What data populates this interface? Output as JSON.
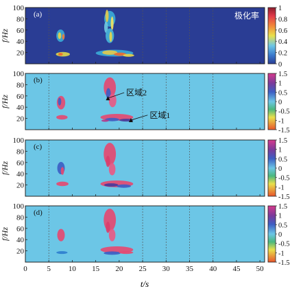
{
  "figure": {
    "xlabel": "t/s",
    "x_ticks": [
      0,
      5,
      10,
      15,
      20,
      25,
      30,
      35,
      40,
      45,
      50
    ],
    "xlim": [
      0,
      51
    ],
    "dashed_vlines": [
      5,
      25,
      30,
      35,
      40
    ]
  },
  "chart_data": [
    {
      "type": "heatmap",
      "panel_label": "(a)",
      "annotation": "极化率",
      "ylabel": "f/Hz",
      "ylim": [
        0,
        100
      ],
      "y_ticks": [
        20,
        40,
        60,
        80,
        100
      ],
      "background": "#2a3d94",
      "colorbar": {
        "ticks": [
          "1",
          "0.8",
          "0.6",
          "0.4",
          "0.2",
          "0"
        ],
        "range": [
          0,
          1
        ]
      },
      "blobs": [
        {
          "t": 7.5,
          "f": 50,
          "dt": 0.9,
          "df": 11,
          "color": "#3ba9d6"
        },
        {
          "t": 7.3,
          "f": 50,
          "dt": 0.35,
          "df": 6,
          "color": "#e6d54a"
        },
        {
          "t": 8.1,
          "f": 48,
          "dt": 0.25,
          "df": 5,
          "color": "#f07c3a"
        },
        {
          "t": 8.0,
          "f": 17,
          "dt": 1.5,
          "df": 4,
          "color": "#d9d44c"
        },
        {
          "t": 7.5,
          "f": 17,
          "dt": 0.5,
          "df": 2.5,
          "color": "#ef6a2f"
        },
        {
          "t": 18,
          "f": 80,
          "dt": 1.2,
          "df": 14,
          "color": "#3ba9d6"
        },
        {
          "t": 17.4,
          "f": 85,
          "dt": 0.35,
          "df": 11,
          "color": "#e3c94d"
        },
        {
          "t": 18.5,
          "f": 72,
          "dt": 0.3,
          "df": 12,
          "color": "#f3e25e"
        },
        {
          "t": 17.2,
          "f": 65,
          "dt": 0.4,
          "df": 10,
          "color": "#6fc7e0"
        },
        {
          "t": 18,
          "f": 50,
          "dt": 0.9,
          "df": 13,
          "color": "#47b4d8"
        },
        {
          "t": 18.2,
          "f": 48,
          "dt": 0.3,
          "df": 9,
          "color": "#e6d54a"
        },
        {
          "t": 19,
          "f": 19,
          "dt": 4,
          "df": 6,
          "color": "#3ba9d6"
        },
        {
          "t": 18,
          "f": 20,
          "dt": 1.6,
          "df": 4,
          "color": "#e3c94d"
        },
        {
          "t": 20.2,
          "f": 17,
          "dt": 1.3,
          "df": 3,
          "color": "#ef6a2f"
        },
        {
          "t": 22,
          "f": 15,
          "dt": 1.2,
          "df": 2.5,
          "color": "#e6d54a"
        }
      ]
    },
    {
      "type": "heatmap",
      "panel_label": "(b)",
      "ylabel": "f/Hz",
      "ylim": [
        0,
        100
      ],
      "y_ticks": [
        20,
        40,
        60,
        80,
        100
      ],
      "background": "#6cc6e6",
      "colorbar": {
        "ticks": [
          "1.5",
          "1",
          "0.5",
          "0",
          "-0.5",
          "-1",
          "-1.5"
        ],
        "range": [
          -1.5,
          1.5
        ]
      },
      "annotations": [
        {
          "text": "区域2",
          "t": 21.5,
          "f": 61,
          "arrow_to": [
            17.6,
            56
          ]
        },
        {
          "text": "区域1",
          "t": 26.5,
          "f": 21,
          "arrow_to": [
            22.5,
            17
          ]
        }
      ],
      "blobs": [
        {
          "t": 7.6,
          "f": 48,
          "dt": 0.9,
          "df": 12,
          "color": "#e44a72"
        },
        {
          "t": 7.3,
          "f": 50,
          "dt": 0.35,
          "df": 7,
          "color": "#3d5fc4"
        },
        {
          "t": 7.8,
          "f": 22,
          "dt": 1.2,
          "df": 4,
          "color": "#e44a72"
        },
        {
          "t": 18,
          "f": 75,
          "dt": 1.3,
          "df": 18,
          "color": "#e44a72"
        },
        {
          "t": 17.7,
          "f": 64,
          "dt": 0.5,
          "df": 10,
          "color": "#3d5fc4"
        },
        {
          "t": 18.6,
          "f": 52,
          "dt": 0.8,
          "df": 12,
          "color": "#e85a86"
        },
        {
          "t": 19.5,
          "f": 22,
          "dt": 3.5,
          "df": 6,
          "color": "#e44a72"
        },
        {
          "t": 18.5,
          "f": 18,
          "dt": 1.5,
          "df": 3,
          "color": "#3d5fc4"
        },
        {
          "t": 21.5,
          "f": 17,
          "dt": 1.5,
          "df": 2.5,
          "color": "#4a3b9a"
        },
        {
          "t": 17,
          "f": 16,
          "dt": 0.8,
          "df": 2,
          "color": "#b53a8a"
        }
      ]
    },
    {
      "type": "heatmap",
      "panel_label": "(c)",
      "ylabel": "f/Hz",
      "ylim": [
        0,
        100
      ],
      "y_ticks": [
        20,
        40,
        60,
        80,
        100
      ],
      "background": "#6cc6e6",
      "colorbar": {
        "ticks": [
          "1.5",
          "1",
          "0.5",
          "0",
          "-0.5",
          "-1",
          "-1.5"
        ],
        "range": [
          -1.5,
          1.5
        ]
      },
      "blobs": [
        {
          "t": 7.6,
          "f": 50,
          "dt": 0.8,
          "df": 11,
          "color": "#3d5fc4"
        },
        {
          "t": 7.9,
          "f": 45,
          "dt": 0.35,
          "df": 7,
          "color": "#e44a72"
        },
        {
          "t": 7.9,
          "f": 22,
          "dt": 1.3,
          "df": 4,
          "color": "#e44a72"
        },
        {
          "t": 18,
          "f": 75,
          "dt": 1.3,
          "df": 20,
          "color": "#e44a72"
        },
        {
          "t": 17.6,
          "f": 62,
          "dt": 0.45,
          "df": 10,
          "color": "#d93f6d"
        },
        {
          "t": 18.5,
          "f": 48,
          "dt": 0.7,
          "df": 11,
          "color": "#e85a86"
        },
        {
          "t": 19.5,
          "f": 22,
          "dt": 3.5,
          "df": 6,
          "color": "#e44a72"
        },
        {
          "t": 18.3,
          "f": 20,
          "dt": 1.5,
          "df": 3,
          "color": "#4a3b9a"
        },
        {
          "t": 21,
          "f": 18,
          "dt": 1.5,
          "df": 3,
          "color": "#3d5fc4"
        }
      ]
    },
    {
      "type": "heatmap",
      "panel_label": "(d)",
      "ylabel": "f/Hz",
      "ylim": [
        0,
        100
      ],
      "y_ticks": [
        20,
        40,
        60,
        80,
        100
      ],
      "background": "#6cc6e6",
      "colorbar": {
        "ticks": [
          "1.5",
          "1",
          "0.5",
          "0",
          "-0.5",
          "-1",
          "-1.5"
        ],
        "range": [
          -1.5,
          1.5
        ]
      },
      "blobs": [
        {
          "t": 7.6,
          "f": 48,
          "dt": 0.8,
          "df": 11,
          "color": "#e44a72"
        },
        {
          "t": 7.8,
          "f": 17,
          "dt": 1.2,
          "df": 2.5,
          "color": "#2f7fcf"
        },
        {
          "t": 18,
          "f": 75,
          "dt": 1.3,
          "df": 20,
          "color": "#e44a72"
        },
        {
          "t": 17.6,
          "f": 62,
          "dt": 0.45,
          "df": 10,
          "color": "#d93f6d"
        },
        {
          "t": 18.5,
          "f": 48,
          "dt": 0.7,
          "df": 11,
          "color": "#e85a86"
        },
        {
          "t": 19.5,
          "f": 22,
          "dt": 3.5,
          "df": 6,
          "color": "#e44a72"
        },
        {
          "t": 18.5,
          "f": 16,
          "dt": 1.8,
          "df": 3,
          "color": "#3d5fc4"
        },
        {
          "t": 21.5,
          "f": 17,
          "dt": 1.5,
          "df": 2.5,
          "color": "#e44a72"
        }
      ]
    }
  ]
}
